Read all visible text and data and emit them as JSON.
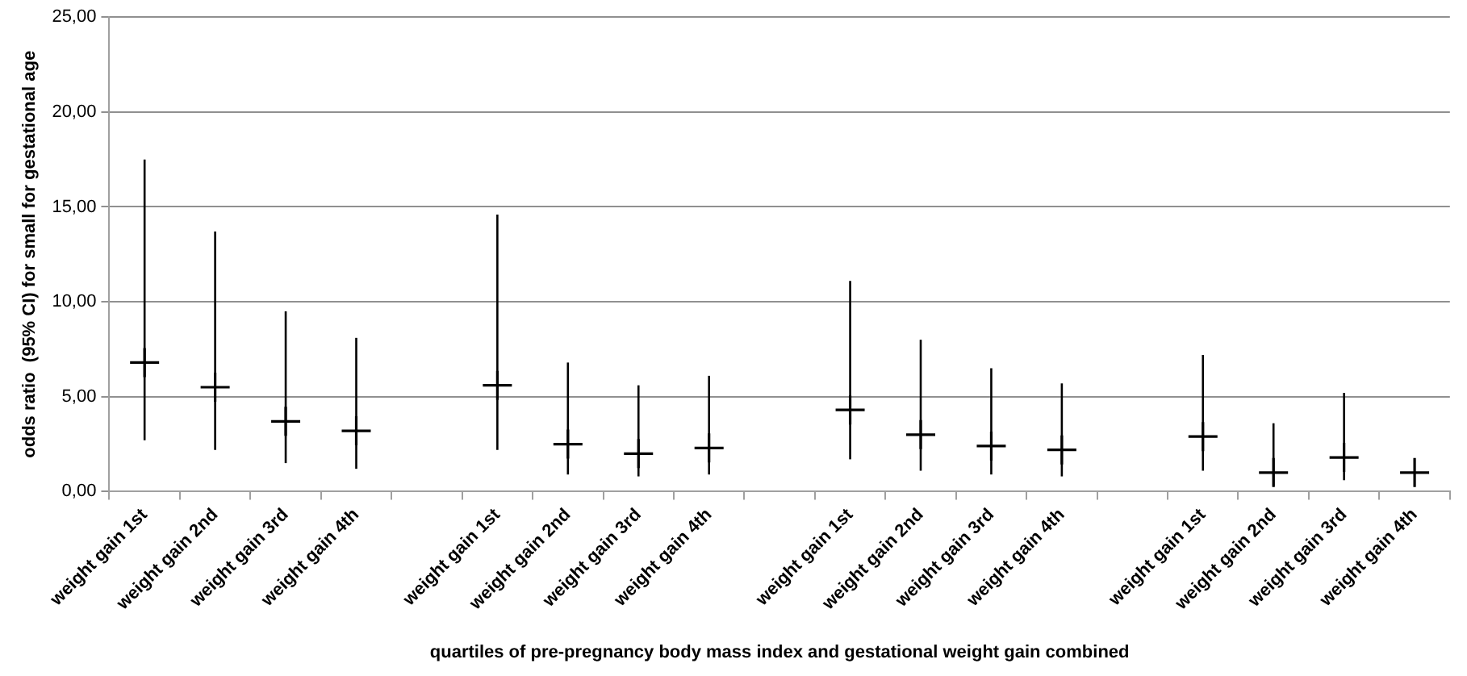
{
  "chart_data": {
    "type": "scatter",
    "xlabel": "quartiles of pre-pregnancy body mass index and gestational weight gain combined",
    "ylabel": "odds ratio  (95% CI) for small for gestational age",
    "categories": [
      "weight gain 1st",
      "weight gain 2nd",
      "weight gain 3rd",
      "weight gain 4th",
      null,
      "weight gain 1st",
      "weight gain 2nd",
      "weight gain 3rd",
      "weight gain 4th",
      null,
      "weight gain 1st",
      "weight gain 2nd",
      "weight gain 3rd",
      "weight gain 4th",
      null,
      "weight gain 1st",
      "weight gain 2nd",
      "weight gain 3rd",
      "weight gain 4th"
    ],
    "series": [
      {
        "color": "#000000",
        "values": [
          6.8,
          5.5,
          3.7,
          3.2,
          null,
          5.6,
          2.5,
          2.0,
          2.3,
          null,
          4.3,
          3.0,
          2.4,
          2.2,
          null,
          2.9,
          1.0,
          1.8,
          1.0
        ],
        "errors": [
          [
            2.7,
            17.5
          ],
          [
            2.2,
            13.7
          ],
          [
            1.5,
            9.5
          ],
          [
            1.2,
            8.1
          ],
          null,
          [
            2.2,
            14.6
          ],
          [
            0.9,
            6.8
          ],
          [
            0.8,
            5.6
          ],
          [
            0.9,
            6.1
          ],
          null,
          [
            1.7,
            11.1
          ],
          [
            1.1,
            8.0
          ],
          [
            0.9,
            6.5
          ],
          [
            0.8,
            5.7
          ],
          null,
          [
            1.1,
            7.2
          ],
          [
            0.3,
            3.6
          ],
          [
            0.6,
            5.2
          ],
          null
        ]
      }
    ],
    "ylim": [
      0,
      25
    ],
    "yticks": [
      {
        "value": 0,
        "label": "0,00"
      },
      {
        "value": 5,
        "label": "5,00"
      },
      {
        "value": 10,
        "label": "10,00"
      },
      {
        "value": 15,
        "label": "15,00"
      },
      {
        "value": 20,
        "label": "20,00"
      },
      {
        "value": 25,
        "label": "25,00"
      }
    ],
    "grid": "y",
    "legend": false,
    "marker": "cross"
  }
}
